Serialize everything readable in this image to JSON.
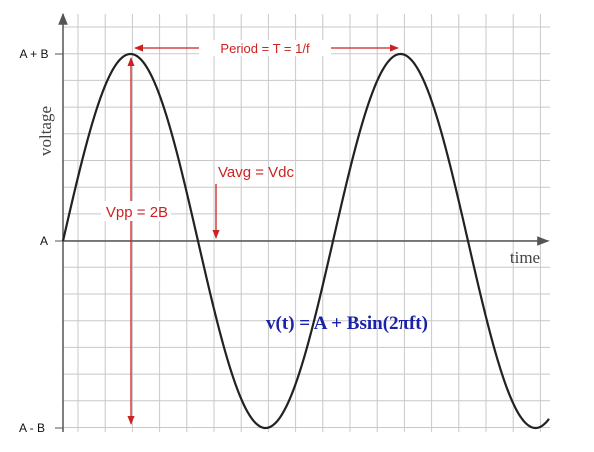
{
  "chart_data": {
    "type": "line",
    "title": "",
    "xlabel": "time",
    "ylabel": "voltage",
    "y_tick_labels": [
      "A + B",
      "A",
      "A - B"
    ],
    "y_tick_values": [
      1,
      0,
      -1
    ],
    "grid": true,
    "series": [
      {
        "values_description_free": true,
        "x": [
          0,
          0.125,
          0.25,
          0.375,
          0.5,
          0.625,
          0.75,
          0.875,
          1.0,
          1.125,
          1.25,
          1.375,
          1.5,
          1.625,
          1.75,
          1.875
        ],
        "y": [
          0,
          0.707,
          1,
          0.707,
          0,
          -0.707,
          -1,
          -0.707,
          0,
          0.707,
          1,
          0.707,
          0,
          -0.707,
          -1,
          -0.707
        ]
      }
    ],
    "annotations": {
      "period": "Period = T = 1/f",
      "vpp": "Vpp = 2B",
      "vavg": "Vavg = Vdc",
      "formula": "v(t) = A + Bsin(2πft)"
    },
    "colors": {
      "curve": "#222222",
      "annotation": "#cc2222",
      "formula": "#1a22a8",
      "grid": "#c8c8c8",
      "axis": "#555555"
    }
  }
}
